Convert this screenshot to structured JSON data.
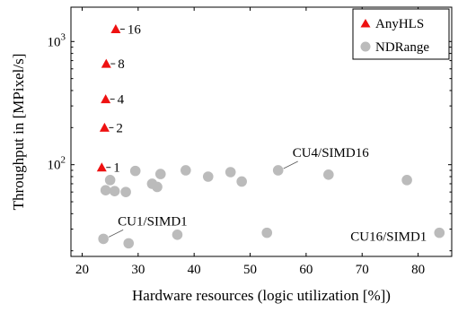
{
  "chart_data": {
    "type": "scatter",
    "xlabel": "Hardware resources (logic utilization [%])",
    "ylabel": "Throughput in [MPixel/s]",
    "xlim": [
      18,
      86
    ],
    "ylim": [
      18,
      1900
    ],
    "yscale": "log",
    "grid": false,
    "legend_position": "top-right",
    "x_ticks": [
      20,
      30,
      40,
      50,
      60,
      70,
      80
    ],
    "y_ticks": [
      {
        "value": 100,
        "base": "10",
        "exp": "2"
      },
      {
        "value": 1000,
        "base": "10",
        "exp": "3"
      }
    ],
    "series": [
      {
        "name": "AnyHLS",
        "marker": "triangle",
        "color": "#ee1111",
        "points": [
          {
            "x": 23.5,
            "y": 95,
            "label": "1"
          },
          {
            "x": 24.0,
            "y": 200,
            "label": "2"
          },
          {
            "x": 24.2,
            "y": 340,
            "label": "4"
          },
          {
            "x": 24.3,
            "y": 660,
            "label": "8"
          },
          {
            "x": 26.0,
            "y": 1260,
            "label": "16"
          }
        ]
      },
      {
        "name": "NDRange",
        "marker": "circle",
        "color": "#bbbbbb",
        "points": [
          {
            "x": 24.2,
            "y": 62
          },
          {
            "x": 25.0,
            "y": 75
          },
          {
            "x": 25.8,
            "y": 61
          },
          {
            "x": 27.8,
            "y": 60
          },
          {
            "x": 29.5,
            "y": 89
          },
          {
            "x": 32.5,
            "y": 70
          },
          {
            "x": 33.4,
            "y": 66
          },
          {
            "x": 34.0,
            "y": 84
          },
          {
            "x": 38.5,
            "y": 90
          },
          {
            "x": 42.5,
            "y": 80
          },
          {
            "x": 46.5,
            "y": 87
          },
          {
            "x": 48.5,
            "y": 73
          },
          {
            "x": 55.0,
            "y": 90
          },
          {
            "x": 64.0,
            "y": 83
          },
          {
            "x": 78.0,
            "y": 75
          },
          {
            "x": 23.8,
            "y": 25
          },
          {
            "x": 28.3,
            "y": 23
          },
          {
            "x": 37.0,
            "y": 27
          },
          {
            "x": 53.0,
            "y": 28
          },
          {
            "x": 83.8,
            "y": 28
          }
        ]
      }
    ],
    "annotations": [
      {
        "text": "CU4/SIMD16",
        "x": 55.0,
        "y": 90,
        "anchor": "upper-right"
      },
      {
        "text": "CU1/SIMD1",
        "x": 23.8,
        "y": 25,
        "anchor": "upper-right"
      },
      {
        "text": "CU16/SIMD1",
        "x": 83.8,
        "y": 28,
        "anchor": "left"
      }
    ]
  }
}
